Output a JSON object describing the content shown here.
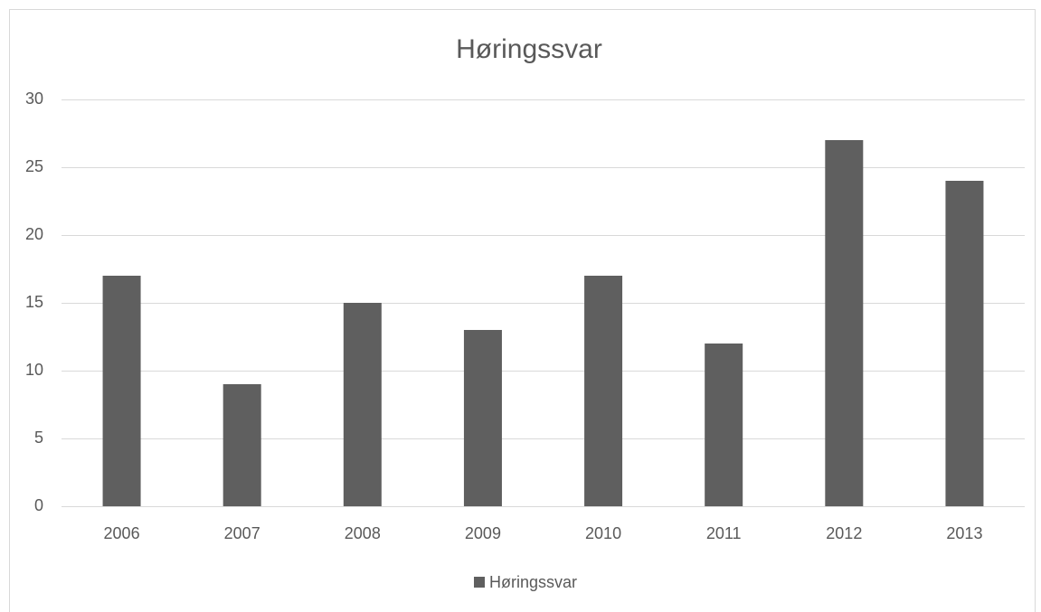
{
  "chart_data": {
    "type": "bar",
    "title": "Høringssvar",
    "categories": [
      "2006",
      "2007",
      "2008",
      "2009",
      "2010",
      "2011",
      "2012",
      "2013"
    ],
    "series": [
      {
        "name": "Høringssvar",
        "color": "#5f5f5f",
        "values": [
          17,
          9,
          15,
          13,
          17,
          12,
          27,
          24
        ]
      }
    ],
    "ylim": [
      0,
      30
    ],
    "yticks": [
      0,
      5,
      10,
      15,
      20,
      25,
      30
    ],
    "grid": true,
    "legend": "bottom"
  }
}
